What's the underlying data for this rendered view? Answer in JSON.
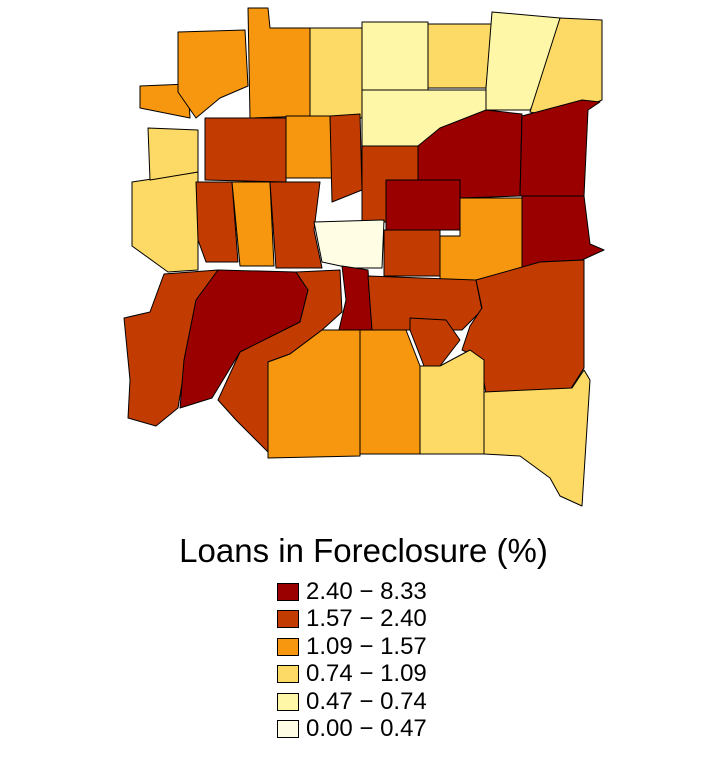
{
  "legend": {
    "title": "Loans in Foreclosure (%)",
    "classes": [
      {
        "label": "2.40 − 8.33",
        "color": "#9b0000"
      },
      {
        "label": "1.57 − 2.40",
        "color": "#c23b00"
      },
      {
        "label": "1.09 − 1.57",
        "color": "#f7960f"
      },
      {
        "label": "0.74 − 1.09",
        "color": "#fdd966"
      },
      {
        "label": "0.47 − 0.74",
        "color": "#fef7a8"
      },
      {
        "label": "0.00 − 0.47",
        "color": "#fffde4"
      }
    ]
  }
}
